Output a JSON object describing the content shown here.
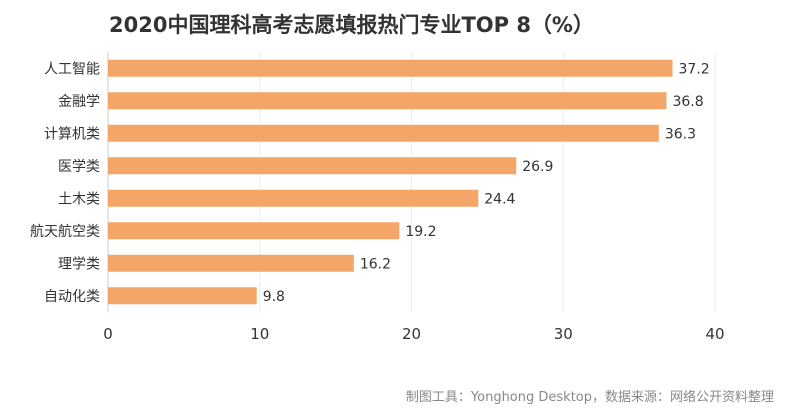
{
  "title": "2020中国理科高考志愿填报热门专业TOP 8（%）",
  "source": "制图工具：Yonghong Desktop，数据来源：网络公开资料整理",
  "colors": {
    "bar": "#f4a669",
    "grid": "#ececec",
    "axis": "#cccccc",
    "text": "#333333"
  },
  "chart_data": {
    "type": "bar",
    "orientation": "horizontal",
    "categories": [
      "人工智能",
      "金融学",
      "计算机类",
      "医学类",
      "土木类",
      "航天航空类",
      "理学类",
      "自动化类"
    ],
    "values": [
      37.2,
      36.8,
      36.3,
      26.9,
      24.4,
      19.2,
      16.2,
      9.8
    ],
    "xlim": [
      0,
      40
    ],
    "xticks": [
      0,
      10,
      20,
      30,
      40
    ],
    "title": "2020中国理科高考志愿填报热门专业TOP 8（%）",
    "xlabel": "",
    "ylabel": "",
    "grid": true,
    "data_labels": true
  }
}
